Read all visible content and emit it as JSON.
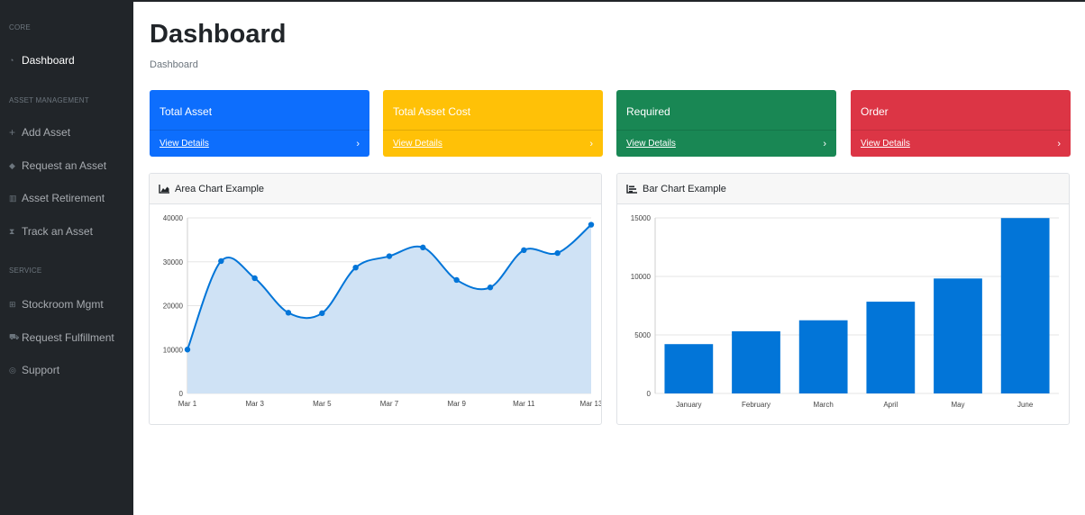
{
  "sidebar": {
    "sections": [
      {
        "heading": "CORE",
        "items": [
          {
            "label": "Dashboard",
            "icon": "tachometer-icon",
            "active": true
          }
        ]
      },
      {
        "heading": "ASSET MANAGEMENT",
        "items": [
          {
            "label": "Add Asset",
            "icon": "plus-icon"
          },
          {
            "label": "Request an Asset",
            "icon": "tag-icon"
          },
          {
            "label": "Asset Retirement",
            "icon": "trash-icon"
          },
          {
            "label": "Track an Asset",
            "icon": "hourglass-icon"
          }
        ]
      },
      {
        "heading": "SERVICE",
        "items": [
          {
            "label": "Stockroom Mgmt",
            "icon": "table-icon"
          },
          {
            "label": "Request Fulfillment",
            "icon": "cart-icon"
          },
          {
            "label": "Support",
            "icon": "support-icon"
          }
        ]
      }
    ]
  },
  "page": {
    "title": "Dashboard",
    "breadcrumb": "Dashboard"
  },
  "cards": [
    {
      "title": "Total Asset",
      "link": "View Details",
      "color": "#0d6efd"
    },
    {
      "title": "Total Asset Cost",
      "link": "View Details",
      "color": "#ffc107"
    },
    {
      "title": "Required",
      "link": "View Details",
      "color": "#198754"
    },
    {
      "title": "Order",
      "link": "View Details",
      "color": "#dc3545"
    }
  ],
  "panels": {
    "area_title": "Area Chart Example",
    "bar_title": "Bar Chart Example"
  },
  "chart_data": [
    {
      "type": "area",
      "title": "Area Chart Example",
      "x": [
        "Mar 1",
        "Mar 2",
        "Mar 3",
        "Mar 4",
        "Mar 5",
        "Mar 6",
        "Mar 7",
        "Mar 8",
        "Mar 9",
        "Mar 10",
        "Mar 11",
        "Mar 12",
        "Mar 13"
      ],
      "x_tick_labels": [
        "Mar 1",
        "Mar 3",
        "Mar 5",
        "Mar 7",
        "Mar 9",
        "Mar 11",
        "Mar 13"
      ],
      "values": [
        10000,
        30162,
        26263,
        18394,
        18287,
        28682,
        31274,
        33259,
        25849,
        24159,
        32651,
        31984,
        38451
      ],
      "ylim": [
        0,
        40000
      ],
      "y_ticks": [
        0,
        10000,
        20000,
        30000,
        40000
      ],
      "color": "#0275d8",
      "fill": "#cfe2f5",
      "grid": true
    },
    {
      "type": "bar",
      "title": "Bar Chart Example",
      "categories": [
        "January",
        "February",
        "March",
        "April",
        "May",
        "June"
      ],
      "values": [
        4215,
        5312,
        6251,
        7841,
        9821,
        14984
      ],
      "ylim": [
        0,
        15000
      ],
      "y_ticks": [
        0,
        5000,
        10000,
        15000
      ],
      "color": "#0275d8",
      "grid": true
    }
  ]
}
